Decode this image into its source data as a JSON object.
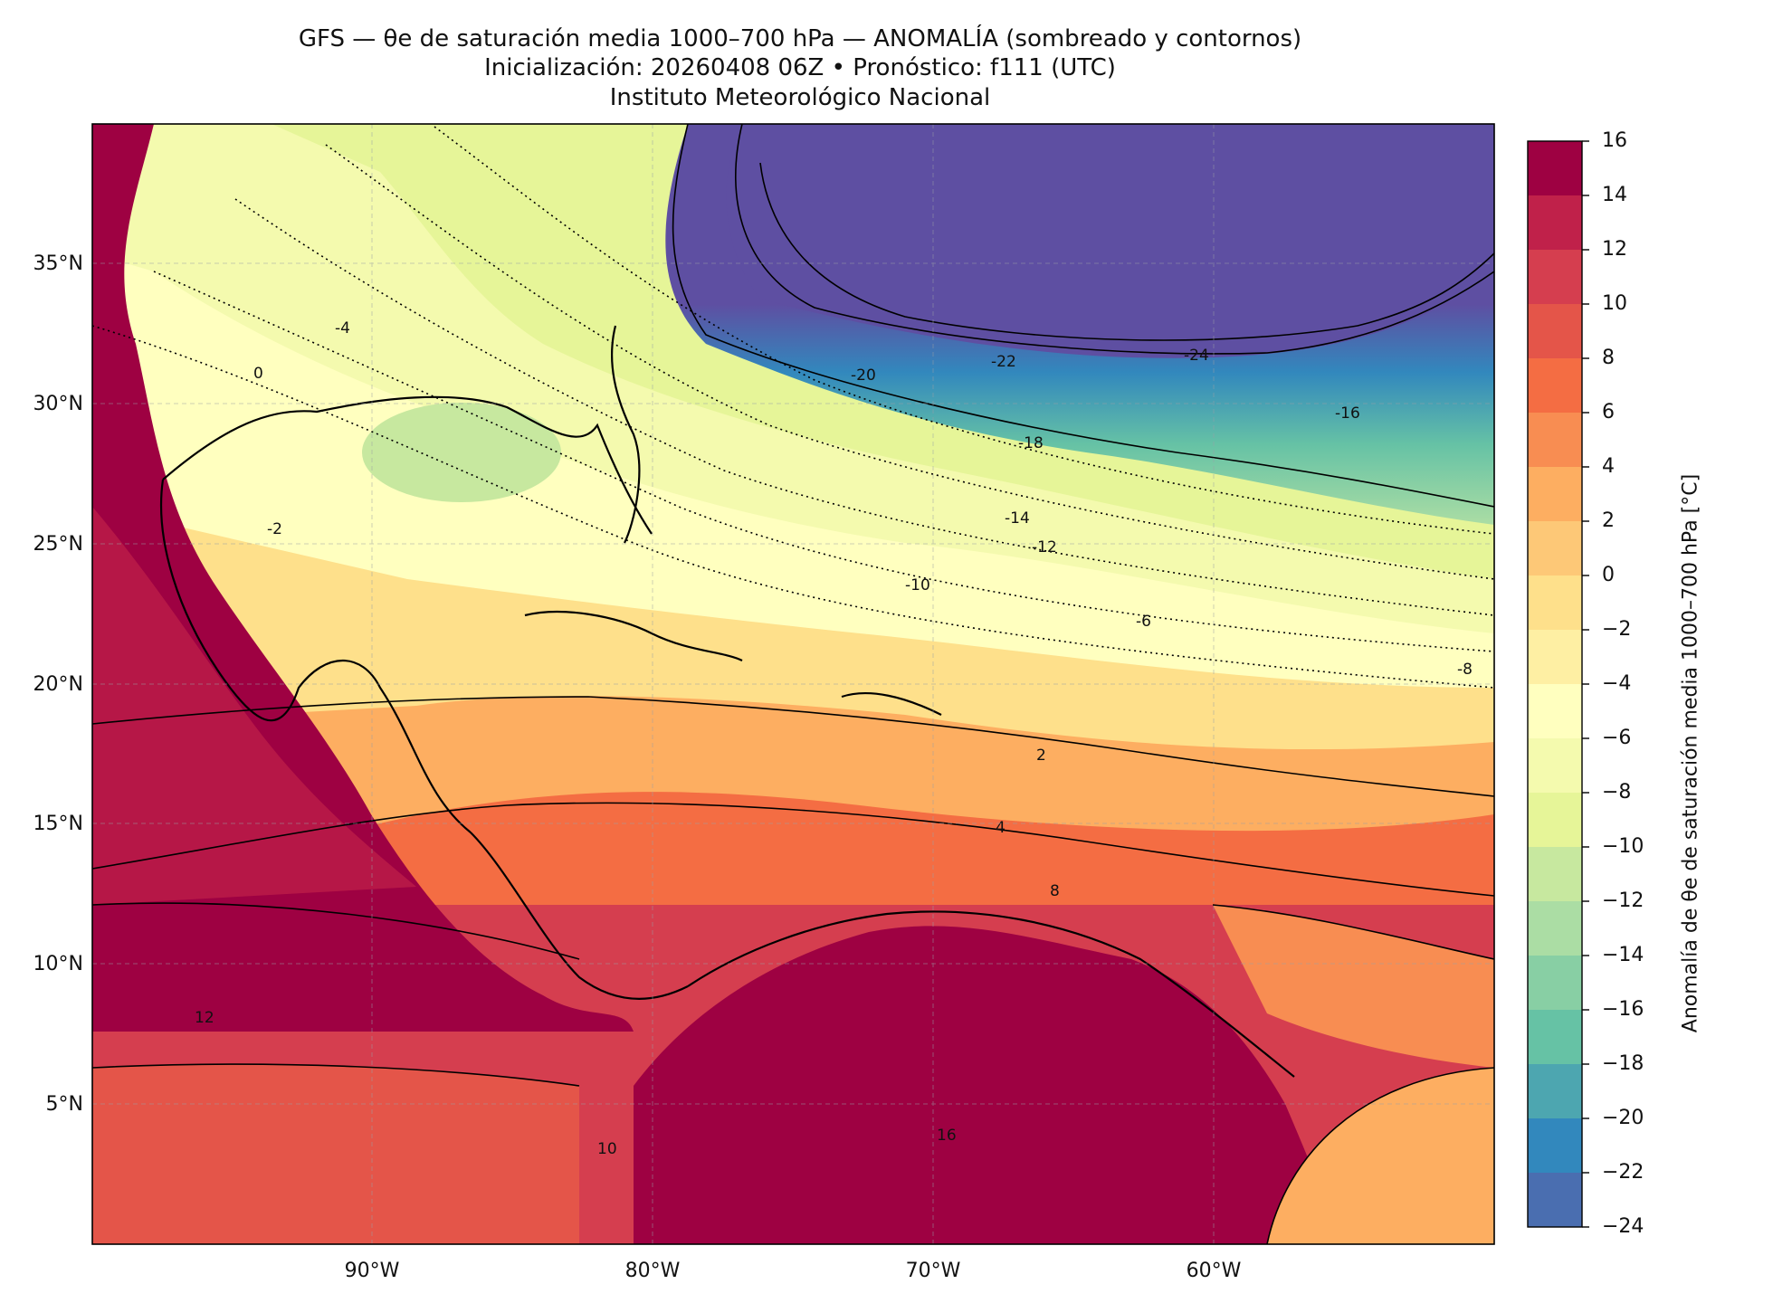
{
  "title": {
    "line1": "GFS — θe de saturación media 1000–700 hPa — ANOMALÍA (sombreado y contornos)",
    "line2": "Inicialización: 20260408 06Z   •   Pronóstico: f111 (UTC)",
    "line3": "Instituto Meteorológico Nacional"
  },
  "axes": {
    "lat_labels": [
      "35°N",
      "30°N",
      "25°N",
      "20°N",
      "15°N",
      "10°N",
      "5°N"
    ],
    "lon_labels": [
      "90°W",
      "80°W",
      "70°W",
      "60°W"
    ],
    "lon_range": [
      -100,
      -50
    ],
    "lat_range": [
      0,
      40
    ],
    "gridlines": true
  },
  "colorbar": {
    "label": "Anomalía de θe de saturación media 1000–700 hPa [°C]",
    "ticks": [
      "16",
      "14",
      "12",
      "10",
      "8",
      "6",
      "4",
      "2",
      "0",
      "−2",
      "−4",
      "−6",
      "−8",
      "−10",
      "−12",
      "−14",
      "−16",
      "−18",
      "−20",
      "−22",
      "−24"
    ],
    "colors": [
      "#9e0142",
      "#c0214a",
      "#d53e4f",
      "#e45549",
      "#f46d43",
      "#f88d52",
      "#fdae61",
      "#fdc877",
      "#fee08b",
      "#feefa3",
      "#ffffbf",
      "#f4faae",
      "#e6f598",
      "#c7e89f",
      "#abdda4",
      "#88cfa4",
      "#66c2a5",
      "#4da6b0",
      "#3288bd",
      "#4a6eb0",
      "#5e4fa2"
    ]
  },
  "contour_labels": [
    "-24",
    "-22",
    "-20",
    "-18",
    "-16",
    "-14",
    "-12",
    "-10",
    "-8",
    "-6",
    "-4",
    "-2",
    "0",
    "2",
    "4",
    "8",
    "10",
    "12",
    "16"
  ]
}
